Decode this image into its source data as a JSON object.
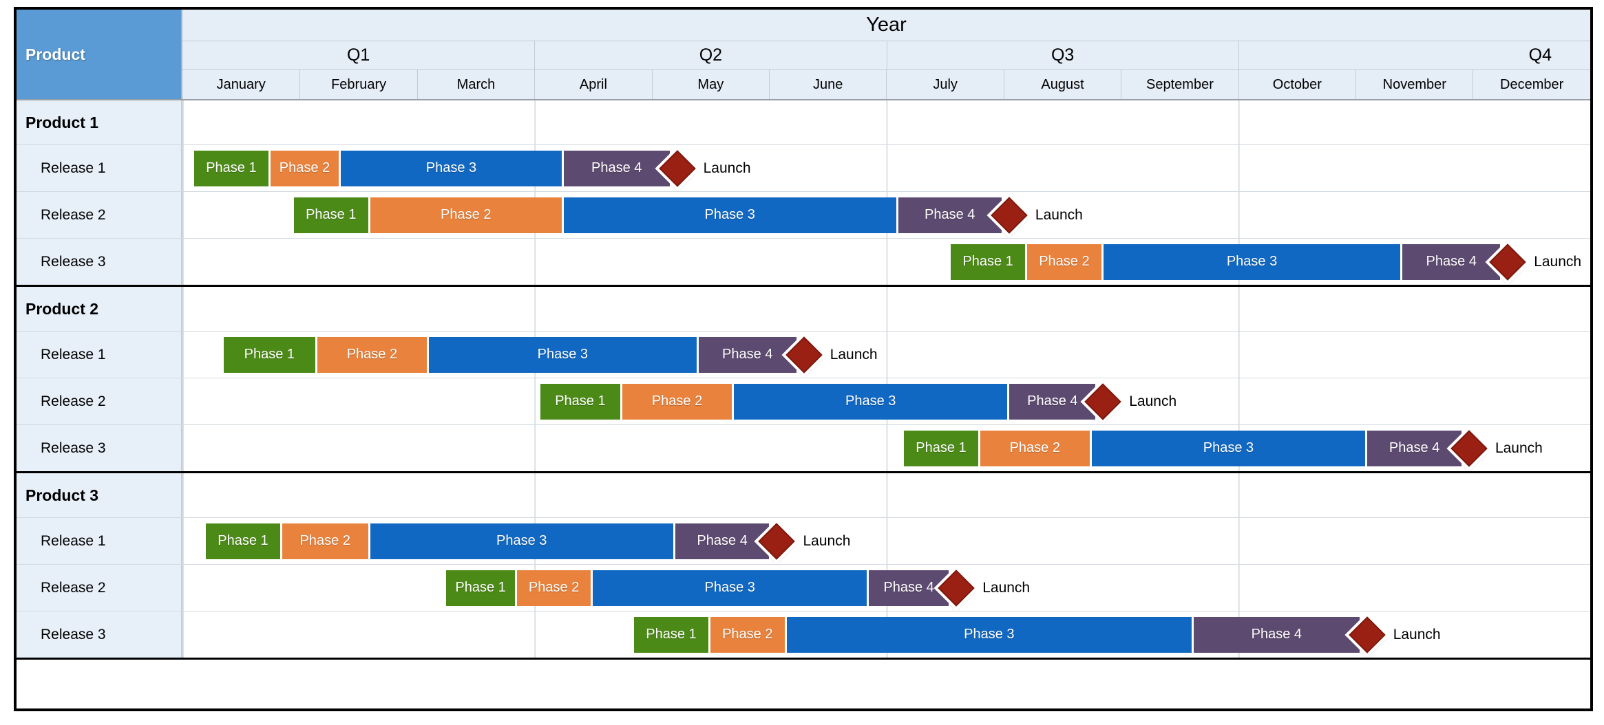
{
  "header": {
    "product_label": "Product",
    "year_label": "Year",
    "quarters": [
      {
        "label": "Q1",
        "align": "center"
      },
      {
        "label": "Q2",
        "align": "center"
      },
      {
        "label": "Q3",
        "align": "center"
      },
      {
        "label": "Q4",
        "align": "right"
      }
    ],
    "months": [
      "January",
      "February",
      "March",
      "April",
      "May",
      "June",
      "July",
      "August",
      "September",
      "October",
      "November",
      "December"
    ]
  },
  "colors": {
    "header_blue": "#5B9BD5",
    "header_light_blue": "#E5EDF7",
    "label_cell_blue": "#E7EFF8",
    "phase1_green": "#4C8A17",
    "phase2_orange": "#E9823C",
    "phase3_blue": "#1168C2",
    "phase4_purple": "#5D4A70",
    "launch_red": "#9B2014"
  },
  "chart_data": {
    "type": "gantt",
    "title": "Year",
    "x_axis": {
      "unit": "months",
      "range": [
        0,
        12
      ],
      "month_labels": [
        "January",
        "February",
        "March",
        "April",
        "May",
        "June",
        "July",
        "August",
        "September",
        "October",
        "November",
        "December"
      ],
      "quarter_labels": [
        "Q1",
        "Q2",
        "Q3",
        "Q4"
      ]
    },
    "phase_legend": [
      "Phase 1",
      "Phase 2",
      "Phase 3",
      "Phase 4"
    ],
    "milestone_label": "Launch",
    "layout_hints": {
      "quarter_gridlines": true,
      "legend": false,
      "row_label_column": "Product"
    },
    "groups": [
      {
        "label": "Product 1",
        "releases": [
          {
            "label": "Release 1",
            "phases": [
              {
                "label": "Phase 1",
                "key": "phase1",
                "start": 0.1,
                "end": 0.75
              },
              {
                "label": "Phase 2",
                "key": "phase2",
                "start": 0.75,
                "end": 1.35
              },
              {
                "label": "Phase 3",
                "key": "phase3",
                "start": 1.35,
                "end": 3.25
              },
              {
                "label": "Phase 4",
                "key": "phase4",
                "start": 3.25,
                "end": 4.17
              }
            ],
            "milestone": {
              "label": "Launch",
              "month": 4.17
            }
          },
          {
            "label": "Release 2",
            "phases": [
              {
                "label": "Phase 1",
                "key": "phase1",
                "start": 0.95,
                "end": 1.6
              },
              {
                "label": "Phase 2",
                "key": "phase2",
                "start": 1.6,
                "end": 3.25
              },
              {
                "label": "Phase 3",
                "key": "phase3",
                "start": 3.25,
                "end": 6.1
              },
              {
                "label": "Phase 4",
                "key": "phase4",
                "start": 6.1,
                "end": 7.0
              }
            ],
            "milestone": {
              "label": "Launch",
              "month": 7.0
            }
          },
          {
            "label": "Release 3",
            "phases": [
              {
                "label": "Phase 1",
                "key": "phase1",
                "start": 6.55,
                "end": 7.2
              },
              {
                "label": "Phase 2",
                "key": "phase2",
                "start": 7.2,
                "end": 7.85
              },
              {
                "label": "Phase 3",
                "key": "phase3",
                "start": 7.85,
                "end": 10.4
              },
              {
                "label": "Phase 4",
                "key": "phase4",
                "start": 10.4,
                "end": 11.25
              }
            ],
            "milestone": {
              "label": "Launch",
              "month": 11.25
            }
          }
        ]
      },
      {
        "label": "Product 2",
        "releases": [
          {
            "label": "Release 1",
            "phases": [
              {
                "label": "Phase 1",
                "key": "phase1",
                "start": 0.35,
                "end": 1.15
              },
              {
                "label": "Phase 2",
                "key": "phase2",
                "start": 1.15,
                "end": 2.1
              },
              {
                "label": "Phase 3",
                "key": "phase3",
                "start": 2.1,
                "end": 4.4
              },
              {
                "label": "Phase 4",
                "key": "phase4",
                "start": 4.4,
                "end": 5.25
              }
            ],
            "milestone": {
              "label": "Launch",
              "month": 5.25
            }
          },
          {
            "label": "Release 2",
            "phases": [
              {
                "label": "Phase 1",
                "key": "phase1",
                "start": 3.05,
                "end": 3.75
              },
              {
                "label": "Phase 2",
                "key": "phase2",
                "start": 3.75,
                "end": 4.7
              },
              {
                "label": "Phase 3",
                "key": "phase3",
                "start": 4.7,
                "end": 7.05
              },
              {
                "label": "Phase 4",
                "key": "phase4",
                "start": 7.05,
                "end": 7.8
              }
            ],
            "milestone": {
              "label": "Launch",
              "month": 7.8
            }
          },
          {
            "label": "Release 3",
            "phases": [
              {
                "label": "Phase 1",
                "key": "phase1",
                "start": 6.15,
                "end": 6.8
              },
              {
                "label": "Phase 2",
                "key": "phase2",
                "start": 6.8,
                "end": 7.75
              },
              {
                "label": "Phase 3",
                "key": "phase3",
                "start": 7.75,
                "end": 10.1
              },
              {
                "label": "Phase 4",
                "key": "phase4",
                "start": 10.1,
                "end": 10.92
              }
            ],
            "milestone": {
              "label": "Launch",
              "month": 10.92
            }
          }
        ]
      },
      {
        "label": "Product 3",
        "releases": [
          {
            "label": "Release 1",
            "phases": [
              {
                "label": "Phase 1",
                "key": "phase1",
                "start": 0.2,
                "end": 0.85
              },
              {
                "label": "Phase 2",
                "key": "phase2",
                "start": 0.85,
                "end": 1.6
              },
              {
                "label": "Phase 3",
                "key": "phase3",
                "start": 1.6,
                "end": 4.2
              },
              {
                "label": "Phase 4",
                "key": "phase4",
                "start": 4.2,
                "end": 5.02
              }
            ],
            "milestone": {
              "label": "Launch",
              "month": 5.02
            }
          },
          {
            "label": "Release 2",
            "phases": [
              {
                "label": "Phase 1",
                "key": "phase1",
                "start": 2.25,
                "end": 2.85
              },
              {
                "label": "Phase 2",
                "key": "phase2",
                "start": 2.85,
                "end": 3.5
              },
              {
                "label": "Phase 3",
                "key": "phase3",
                "start": 3.5,
                "end": 5.85
              },
              {
                "label": "Phase 4",
                "key": "phase4",
                "start": 5.85,
                "end": 6.55
              }
            ],
            "milestone": {
              "label": "Launch",
              "month": 6.55
            }
          },
          {
            "label": "Release 3",
            "phases": [
              {
                "label": "Phase 1",
                "key": "phase1",
                "start": 3.85,
                "end": 4.5
              },
              {
                "label": "Phase 2",
                "key": "phase2",
                "start": 4.5,
                "end": 5.15
              },
              {
                "label": "Phase 3",
                "key": "phase3",
                "start": 5.15,
                "end": 8.62
              },
              {
                "label": "Phase 4",
                "key": "phase4",
                "start": 8.62,
                "end": 10.05
              }
            ],
            "milestone": {
              "label": "Launch",
              "month": 10.05
            }
          }
        ]
      }
    ]
  }
}
